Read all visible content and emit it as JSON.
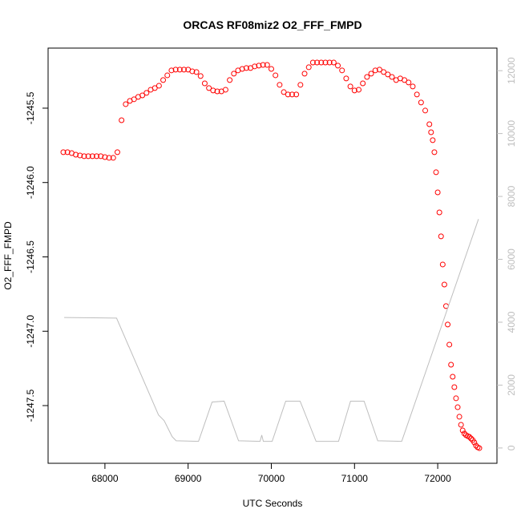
{
  "chart_data": {
    "type": "scatter",
    "title": "ORCAS RF08miz2 O2_FFF_FMPD",
    "xlabel": "UTC Seconds",
    "ylabel": "O2_FFF_FMPD",
    "xlim": [
      67317,
      72712
    ],
    "ylim": [
      -1247.888,
      -1245.096
    ],
    "y2lim": [
      -487,
      12718
    ],
    "xticks": [
      68000,
      69000,
      70000,
      71000,
      72000
    ],
    "yticks": [
      -1245.5,
      {
        "value": -1246,
        "label": "-1246.0"
      },
      -1246.5,
      {
        "value": -1247,
        "label": "-1247.0"
      },
      -1247.5
    ],
    "y2ticks": [
      0,
      2000,
      4000,
      6000,
      8000,
      10000,
      12000
    ],
    "series": [
      {
        "type": "scatter",
        "color": "#ff0000",
        "x": [
          67500,
          67550,
          67600,
          67650,
          67700,
          67750,
          67800,
          67850,
          67900,
          67950,
          68000,
          68050,
          68100,
          68150,
          68200,
          68250,
          68300,
          68350,
          68400,
          68450,
          68500,
          68550,
          68600,
          68650,
          68700,
          68750,
          68800,
          68850,
          68900,
          68950,
          69000,
          69050,
          69100,
          69150,
          69200,
          69250,
          69300,
          69350,
          69400,
          69450,
          69500,
          69550,
          69600,
          69650,
          69700,
          69750,
          69800,
          69850,
          69900,
          69950,
          70000,
          70050,
          70100,
          70150,
          70200,
          70250,
          70300,
          70350,
          70400,
          70450,
          70500,
          70550,
          70600,
          70650,
          70700,
          70750,
          70800,
          70850,
          70900,
          70950,
          71000,
          71050,
          71100,
          71150,
          71200,
          71250,
          71300,
          71350,
          71400,
          71450,
          71500,
          71550,
          71600,
          71650,
          71700,
          71750,
          71800,
          71850,
          71900,
          71920,
          71940,
          71960,
          71980,
          72000,
          72020,
          72040,
          72060,
          72080,
          72100,
          72120,
          72140,
          72160,
          72180,
          72200,
          72220,
          72240,
          72260,
          72280,
          72300,
          72320,
          72340,
          72360,
          72380,
          72400,
          72420,
          72440,
          72460,
          72480,
          72500
        ],
        "values": [
          -1245.796,
          -1245.796,
          -1245.802,
          -1245.813,
          -1245.818,
          -1245.823,
          -1245.823,
          -1245.823,
          -1245.823,
          -1245.823,
          -1245.829,
          -1245.834,
          -1245.834,
          -1245.796,
          -1245.581,
          -1245.473,
          -1245.451,
          -1245.44,
          -1245.424,
          -1245.414,
          -1245.397,
          -1245.376,
          -1245.365,
          -1245.349,
          -1245.311,
          -1245.279,
          -1245.246,
          -1245.241,
          -1245.241,
          -1245.241,
          -1245.241,
          -1245.252,
          -1245.257,
          -1245.284,
          -1245.333,
          -1245.365,
          -1245.381,
          -1245.387,
          -1245.387,
          -1245.376,
          -1245.311,
          -1245.268,
          -1245.246,
          -1245.236,
          -1245.23,
          -1245.23,
          -1245.219,
          -1245.214,
          -1245.209,
          -1245.209,
          -1245.236,
          -1245.279,
          -1245.343,
          -1245.392,
          -1245.408,
          -1245.408,
          -1245.408,
          -1245.343,
          -1245.268,
          -1245.225,
          -1245.193,
          -1245.193,
          -1245.193,
          -1245.193,
          -1245.193,
          -1245.193,
          -1245.214,
          -1245.246,
          -1245.3,
          -1245.354,
          -1245.381,
          -1245.376,
          -1245.333,
          -1245.29,
          -1245.268,
          -1245.246,
          -1245.241,
          -1245.257,
          -1245.273,
          -1245.29,
          -1245.311,
          -1245.3,
          -1245.311,
          -1245.327,
          -1245.354,
          -1245.408,
          -1245.462,
          -1245.516,
          -1245.608,
          -1245.662,
          -1245.715,
          -1245.796,
          -1245.931,
          -1246.066,
          -1246.201,
          -1246.362,
          -1246.551,
          -1246.686,
          -1246.831,
          -1246.955,
          -1247.09,
          -1247.225,
          -1247.306,
          -1247.376,
          -1247.451,
          -1247.511,
          -1247.575,
          -1247.629,
          -1247.667,
          -1247.688,
          -1247.699,
          -1247.705,
          -1247.71,
          -1247.721,
          -1247.732,
          -1247.748,
          -1247.769,
          -1247.78,
          -1247.786
        ]
      },
      {
        "type": "line",
        "color": "#bebebe",
        "axis": "y2",
        "x": [
          67510,
          68140,
          68644,
          68712,
          68808,
          68856,
          69125,
          69288,
          69433,
          69606,
          69865,
          69885,
          69904,
          70010,
          70173,
          70346,
          70538,
          70808,
          70952,
          71115,
          71279,
          71567,
          72490
        ],
        "values": [
          4150,
          4130,
          1050,
          870,
          360,
          230,
          210,
          1460,
          1490,
          230,
          210,
          410,
          210,
          210,
          1490,
          1490,
          210,
          210,
          1490,
          1490,
          230,
          210,
          7280
        ]
      }
    ]
  }
}
